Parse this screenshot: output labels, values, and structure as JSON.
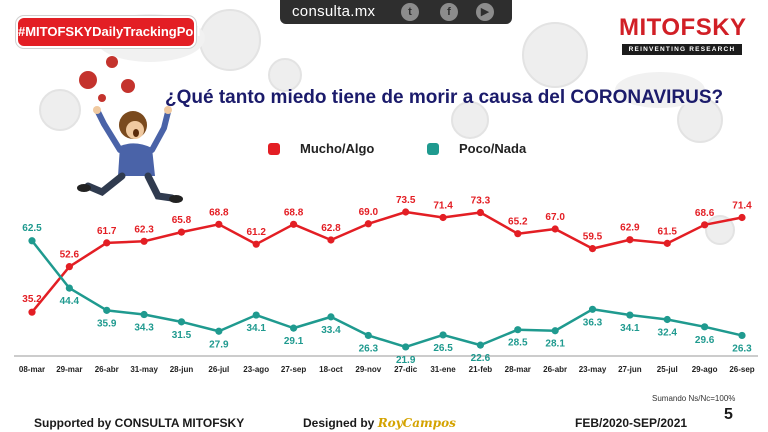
{
  "header": {
    "hashtag": "#MITOFSKYDailyTrackingPoll",
    "site": "consulta.mx",
    "social_icons": [
      "twitter-icon",
      "facebook-icon",
      "youtube-icon"
    ],
    "social_glyphs": [
      "t",
      "f",
      "▶"
    ],
    "logo": "MITOFSKY",
    "logo_tagline": "REINVENTING RESEARCH"
  },
  "footer": {
    "supported_by": "Supported by  CONSULTA  MITOFSKY",
    "designed_by": "Designed by",
    "designer": "RoyCampos",
    "period": "FEB/2020-SEP/2021",
    "note": "Sumando Ns/Nc=100%",
    "page": "5"
  },
  "colors": {
    "red": "#e31e24",
    "teal": "#1f9a8f",
    "title": "#1b1b6b",
    "logo": "#d11f26"
  },
  "chart_data": {
    "type": "line",
    "title": "¿Qué tanto miedo tiene de morir a causa del CORONAVIRUS?",
    "xlabel": "",
    "ylabel": "",
    "ylim": [
      15,
      80
    ],
    "legend": "top-center",
    "grid": false,
    "categories": [
      "08-mar",
      "29-mar",
      "26-abr",
      "31-may",
      "28-jun",
      "26-jul",
      "23-ago",
      "27-sep",
      "18-oct",
      "29-nov",
      "27-dic",
      "31-ene",
      "21-feb",
      "28-mar",
      "26-abr",
      "23-may",
      "27-jun",
      "25-jul",
      "29-ago",
      "26-sep"
    ],
    "series": [
      {
        "name": "Mucho/Algo",
        "color": "#e31e24",
        "values": [
          35.2,
          52.6,
          61.7,
          62.3,
          65.8,
          68.8,
          61.2,
          68.8,
          62.8,
          69.0,
          73.5,
          71.4,
          73.3,
          65.2,
          67.0,
          59.5,
          62.9,
          61.5,
          68.6,
          71.4
        ],
        "labels": [
          "35.2",
          "52.6",
          "61.7",
          "62.3",
          "65.8",
          "68.8",
          "61.2",
          "68.8",
          "62.8",
          "69.0",
          "73.5",
          "71.4",
          "73.3",
          "65.2",
          "67.0",
          "59.5",
          "62.9",
          "61.5",
          "68.6",
          "71.4"
        ]
      },
      {
        "name": "Poco/Nada",
        "color": "#1f9a8f",
        "values": [
          62.5,
          44.4,
          35.9,
          34.3,
          31.5,
          27.9,
          34.1,
          29.1,
          33.4,
          26.3,
          21.9,
          26.5,
          22.6,
          28.5,
          28.1,
          36.3,
          34.1,
          32.4,
          29.6,
          26.3
        ],
        "labels": [
          "62.5",
          "44.4",
          "35.9",
          "34.3",
          "31.5",
          "27.9",
          "34.1",
          "29.1",
          "33.4",
          "26.3",
          "21.9",
          "26.5",
          "22.6",
          "28.5",
          "28.1",
          "36.3",
          "34.1",
          "32.4",
          "29.6",
          "26.3"
        ]
      }
    ]
  }
}
